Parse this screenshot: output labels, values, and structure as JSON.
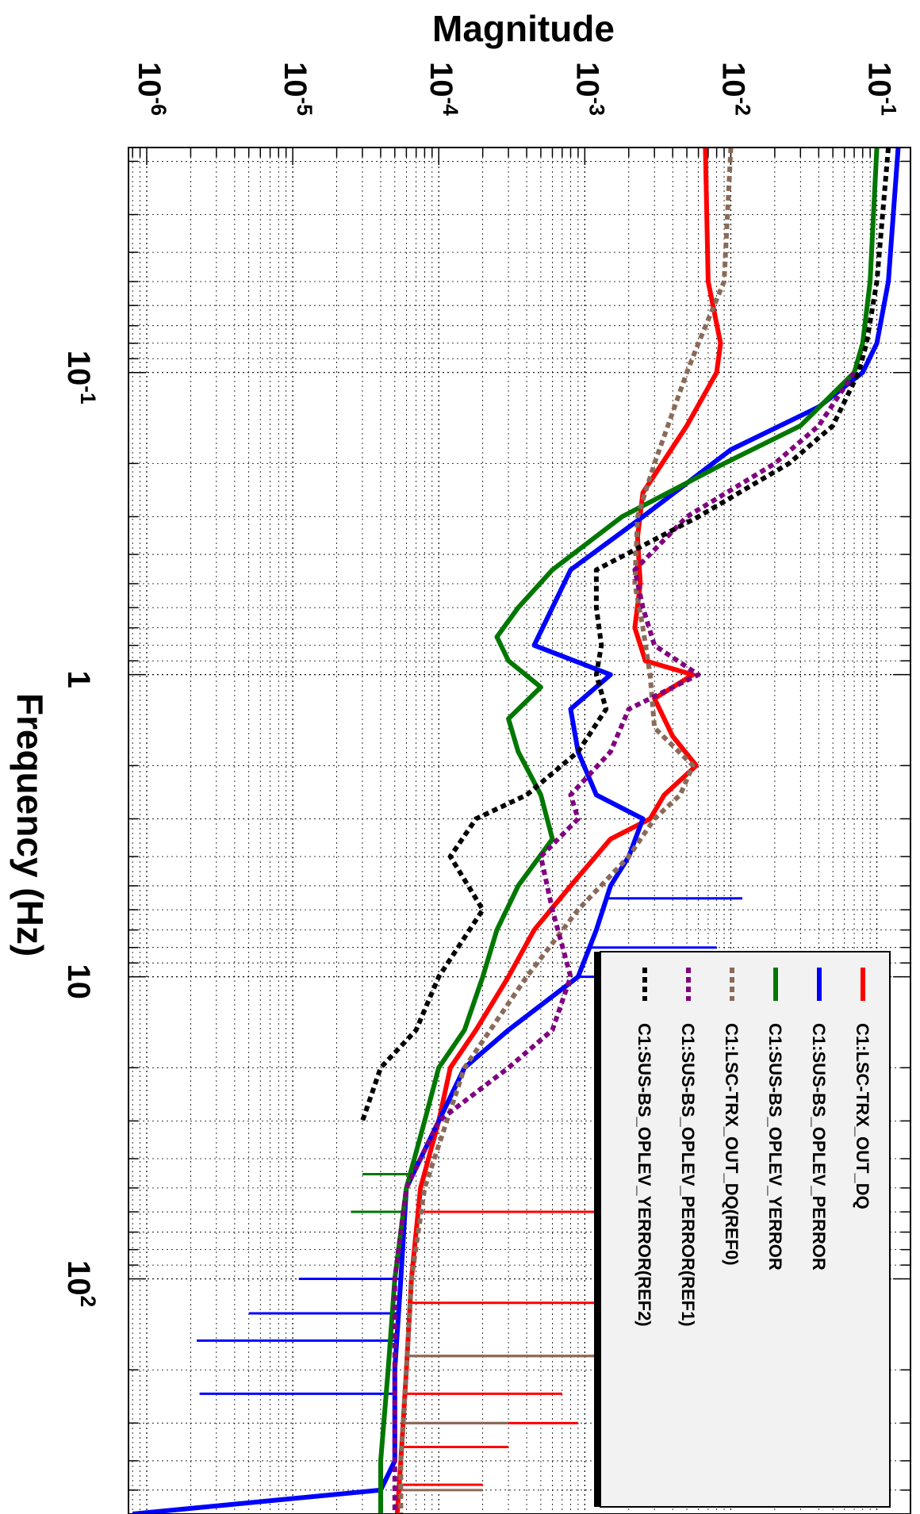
{
  "chart_data": {
    "type": "line",
    "orientation": "rotated-90-clockwise",
    "xlabel": "Frequency (Hz)",
    "ylabel": "Magnitude",
    "x_scale": "log",
    "y_scale": "log",
    "xlim": [
      0.018,
      600
    ],
    "ylim": [
      7.5e-07,
      0.17
    ],
    "grid": true,
    "grid_style": "dotted",
    "legend_position": "bottom-right",
    "x_ticks": [
      {
        "value": 0.1,
        "base": "10",
        "exp": "-1"
      },
      {
        "value": 1,
        "base": "1",
        "exp": ""
      },
      {
        "value": 10,
        "base": "10",
        "exp": ""
      },
      {
        "value": 100,
        "base": "10",
        "exp": "2"
      }
    ],
    "y_ticks": [
      {
        "value": 1e-06,
        "base": "10",
        "exp": "-6"
      },
      {
        "value": 1e-05,
        "base": "10",
        "exp": "-5"
      },
      {
        "value": 0.0001,
        "base": "10",
        "exp": "-4"
      },
      {
        "value": 0.001,
        "base": "10",
        "exp": "-3"
      },
      {
        "value": 0.01,
        "base": "10",
        "exp": "-2"
      },
      {
        "value": 0.1,
        "base": "10",
        "exp": "-1"
      }
    ],
    "series": [
      {
        "name": "C1:LSC-TRX_OUT_DQ",
        "color": "#ff0000",
        "dash": "solid",
        "points": [
          [
            0.018,
            0.0067
          ],
          [
            0.05,
            0.007
          ],
          [
            0.08,
            0.0085
          ],
          [
            0.1,
            0.008
          ],
          [
            0.15,
            0.005
          ],
          [
            0.25,
            0.0025
          ],
          [
            0.35,
            0.0023
          ],
          [
            0.5,
            0.0024
          ],
          [
            0.7,
            0.0022
          ],
          [
            0.9,
            0.0026
          ],
          [
            1,
            0.0055
          ],
          [
            1.2,
            0.003
          ],
          [
            1.6,
            0.004
          ],
          [
            2,
            0.0058
          ],
          [
            2.5,
            0.0035
          ],
          [
            3,
            0.0028
          ],
          [
            3.5,
            0.0015
          ],
          [
            5,
            0.0008
          ],
          [
            7,
            0.00045
          ],
          [
            10,
            0.0003
          ],
          [
            15,
            0.00018
          ],
          [
            20,
            0.00012
          ],
          [
            30,
            0.0001
          ],
          [
            50,
            7.5e-05
          ],
          [
            100,
            6.5e-05
          ],
          [
            200,
            6e-05
          ],
          [
            400,
            5.5e-05
          ],
          [
            600,
            5.2e-05
          ]
        ],
        "spikes": [
          [
            60,
            0.007
          ],
          [
            120,
            0.006
          ],
          [
            180,
            0.0015
          ],
          [
            240,
            0.0007
          ],
          [
            300,
            0.0009
          ],
          [
            360,
            0.0003
          ],
          [
            480,
            0.0002
          ]
        ]
      },
      {
        "name": "C1:SUS-BS_OPLEV_PERROR",
        "color": "#0000ff",
        "dash": "solid",
        "points": [
          [
            0.018,
            0.14
          ],
          [
            0.05,
            0.12
          ],
          [
            0.08,
            0.1
          ],
          [
            0.1,
            0.08
          ],
          [
            0.13,
            0.04
          ],
          [
            0.18,
            0.01
          ],
          [
            0.3,
            0.0025
          ],
          [
            0.45,
            0.0008
          ],
          [
            0.6,
            0.0006
          ],
          [
            0.8,
            0.00045
          ],
          [
            1,
            0.0015
          ],
          [
            1.3,
            0.0008
          ],
          [
            1.8,
            0.0009
          ],
          [
            2.5,
            0.0012
          ],
          [
            3,
            0.0025
          ],
          [
            4,
            0.002
          ],
          [
            5,
            0.0015
          ],
          [
            7,
            0.0012
          ],
          [
            10,
            0.0009
          ],
          [
            15,
            0.0003
          ],
          [
            20,
            0.00015
          ],
          [
            30,
            0.0001
          ],
          [
            50,
            6e-05
          ],
          [
            100,
            5.5e-05
          ],
          [
            200,
            5e-05
          ],
          [
            400,
            5e-05
          ],
          [
            500,
            4e-05
          ],
          [
            600,
            8e-07
          ]
        ],
        "spikes": [
          [
            5.5,
            0.012
          ],
          [
            8,
            0.008
          ],
          [
            10,
            0.015
          ],
          [
            60,
            2.8e-05
          ],
          [
            100,
            1.1e-05
          ],
          [
            130,
            5e-06
          ],
          [
            160,
            2.2e-06
          ],
          [
            240,
            2.3e-06
          ]
        ]
      },
      {
        "name": "C1:SUS-BS_OPLEV_YERROR",
        "color": "#007700",
        "dash": "solid",
        "points": [
          [
            0.018,
            0.1
          ],
          [
            0.05,
            0.09
          ],
          [
            0.08,
            0.08
          ],
          [
            0.1,
            0.07
          ],
          [
            0.15,
            0.03
          ],
          [
            0.2,
            0.009
          ],
          [
            0.3,
            0.0018
          ],
          [
            0.45,
            0.0006
          ],
          [
            0.6,
            0.00035
          ],
          [
            0.75,
            0.00025
          ],
          [
            0.9,
            0.0003
          ],
          [
            1.1,
            0.0005
          ],
          [
            1.4,
            0.0003
          ],
          [
            1.8,
            0.00035
          ],
          [
            2.5,
            0.0005
          ],
          [
            3.5,
            0.0006
          ],
          [
            5,
            0.00035
          ],
          [
            7,
            0.00025
          ],
          [
            10,
            0.0002
          ],
          [
            15,
            0.00015
          ],
          [
            20,
            0.0001
          ],
          [
            30,
            8e-05
          ],
          [
            50,
            6e-05
          ],
          [
            100,
            5e-05
          ],
          [
            200,
            4.5e-05
          ],
          [
            400,
            4e-05
          ],
          [
            600,
            4e-05
          ]
        ],
        "spikes": [
          [
            45,
            3e-05
          ],
          [
            60,
            2.5e-05
          ]
        ]
      },
      {
        "name": "C1:LSC-TRX_OUT_DQ(REF0)",
        "color": "#8a6a58",
        "dash": "dashed",
        "points": [
          [
            0.018,
            0.01
          ],
          [
            0.05,
            0.009
          ],
          [
            0.08,
            0.006
          ],
          [
            0.1,
            0.005
          ],
          [
            0.2,
            0.003
          ],
          [
            0.3,
            0.0023
          ],
          [
            0.5,
            0.0022
          ],
          [
            0.7,
            0.0025
          ],
          [
            1,
            0.0028
          ],
          [
            1.5,
            0.003
          ],
          [
            2,
            0.0055
          ],
          [
            2.5,
            0.0045
          ],
          [
            3,
            0.003
          ],
          [
            4,
            0.002
          ],
          [
            6,
            0.0009
          ],
          [
            10,
            0.0004
          ],
          [
            20,
            0.00015
          ],
          [
            50,
            8e-05
          ],
          [
            100,
            6.5e-05
          ],
          [
            200,
            6e-05
          ],
          [
            400,
            5.5e-05
          ],
          [
            600,
            5.5e-05
          ]
        ],
        "spikes": [
          [
            180,
            0.004
          ],
          [
            300,
            0.0003
          ],
          [
            500,
            0.0002
          ]
        ]
      },
      {
        "name": "C1:SUS-BS_OPLEV_PERROR(REF1)",
        "color": "#800080",
        "dash": "dashed",
        "points": [
          [
            0.1,
            0.07
          ],
          [
            0.15,
            0.04
          ],
          [
            0.2,
            0.02
          ],
          [
            0.3,
            0.005
          ],
          [
            0.45,
            0.0022
          ],
          [
            0.6,
            0.0025
          ],
          [
            0.8,
            0.003
          ],
          [
            1,
            0.006
          ],
          [
            1.3,
            0.002
          ],
          [
            1.8,
            0.0015
          ],
          [
            2.5,
            0.0008
          ],
          [
            3,
            0.0009
          ],
          [
            4,
            0.0005
          ],
          [
            6,
            0.0006
          ],
          [
            10,
            0.0008
          ],
          [
            15,
            0.0006
          ],
          [
            20,
            0.0003
          ],
          [
            30,
            0.0001
          ],
          [
            50,
            6e-05
          ],
          [
            100,
            5e-05
          ],
          [
            200,
            5e-05
          ],
          [
            600,
            5e-05
          ]
        ],
        "spikes": []
      },
      {
        "name": "C1:SUS-BS_OPLEV_YERROR(REF2)",
        "color": "#000000",
        "dash": "dashed",
        "points": [
          [
            0.018,
            0.12
          ],
          [
            0.05,
            0.1
          ],
          [
            0.08,
            0.085
          ],
          [
            0.1,
            0.075
          ],
          [
            0.15,
            0.05
          ],
          [
            0.2,
            0.025
          ],
          [
            0.3,
            0.006
          ],
          [
            0.45,
            0.0012
          ],
          [
            0.6,
            0.0012
          ],
          [
            0.8,
            0.0013
          ],
          [
            1,
            0.0012
          ],
          [
            1.3,
            0.0014
          ],
          [
            1.8,
            0.0009
          ],
          [
            2.5,
            0.0004
          ],
          [
            3,
            0.00018
          ],
          [
            4,
            0.00012
          ],
          [
            6,
            0.0002
          ],
          [
            10,
            0.0001
          ],
          [
            15,
            7e-05
          ],
          [
            20,
            4e-05
          ],
          [
            30,
            3e-05
          ]
        ],
        "spikes": []
      }
    ]
  }
}
